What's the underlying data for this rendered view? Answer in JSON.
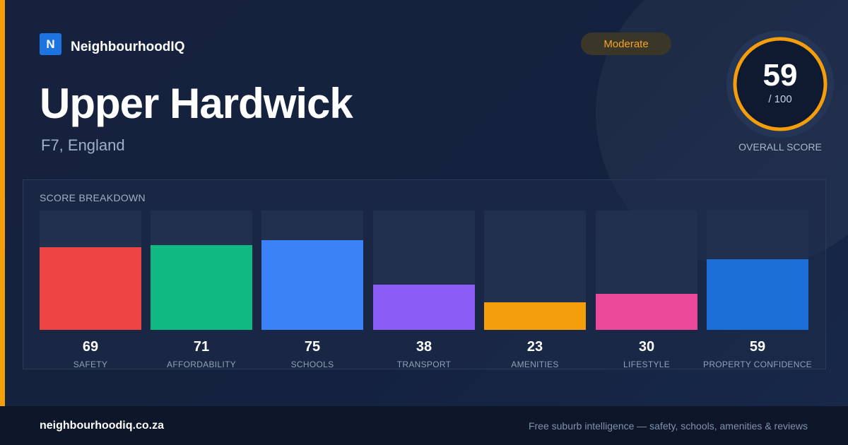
{
  "brand": {
    "logo_letter": "N",
    "name": "NeighbourhoodIQ"
  },
  "header": {
    "title": "Upper Hardwick",
    "location": "F7, England"
  },
  "badge": {
    "label": "Moderate",
    "color": "#f5a623"
  },
  "overall": {
    "value": "59",
    "max": "/ 100",
    "score": 59,
    "caption": "OVERALL SCORE",
    "ring_color": "#f59e0b"
  },
  "breakdown": {
    "title": "SCORE BREAKDOWN",
    "items": [
      {
        "label": "SAFETY",
        "value": "69",
        "score": 69,
        "color": "#ef4444"
      },
      {
        "label": "AFFORDABILITY",
        "value": "71",
        "score": 71,
        "color": "#10b981"
      },
      {
        "label": "SCHOOLS",
        "value": "75",
        "score": 75,
        "color": "#3b82f6"
      },
      {
        "label": "TRANSPORT",
        "value": "38",
        "score": 38,
        "color": "#8b5cf6"
      },
      {
        "label": "AMENITIES",
        "value": "23",
        "score": 23,
        "color": "#f59e0b"
      },
      {
        "label": "LIFESTYLE",
        "value": "30",
        "score": 30,
        "color": "#ec4899"
      },
      {
        "label": "PROPERTY CONFIDENCE",
        "value": "59",
        "score": 59,
        "color": "#1d6fd8"
      }
    ]
  },
  "footer": {
    "domain": "neighbourhoodiq.co.za",
    "tagline": "Free suburb intelligence — safety, schools, amenities & reviews"
  }
}
